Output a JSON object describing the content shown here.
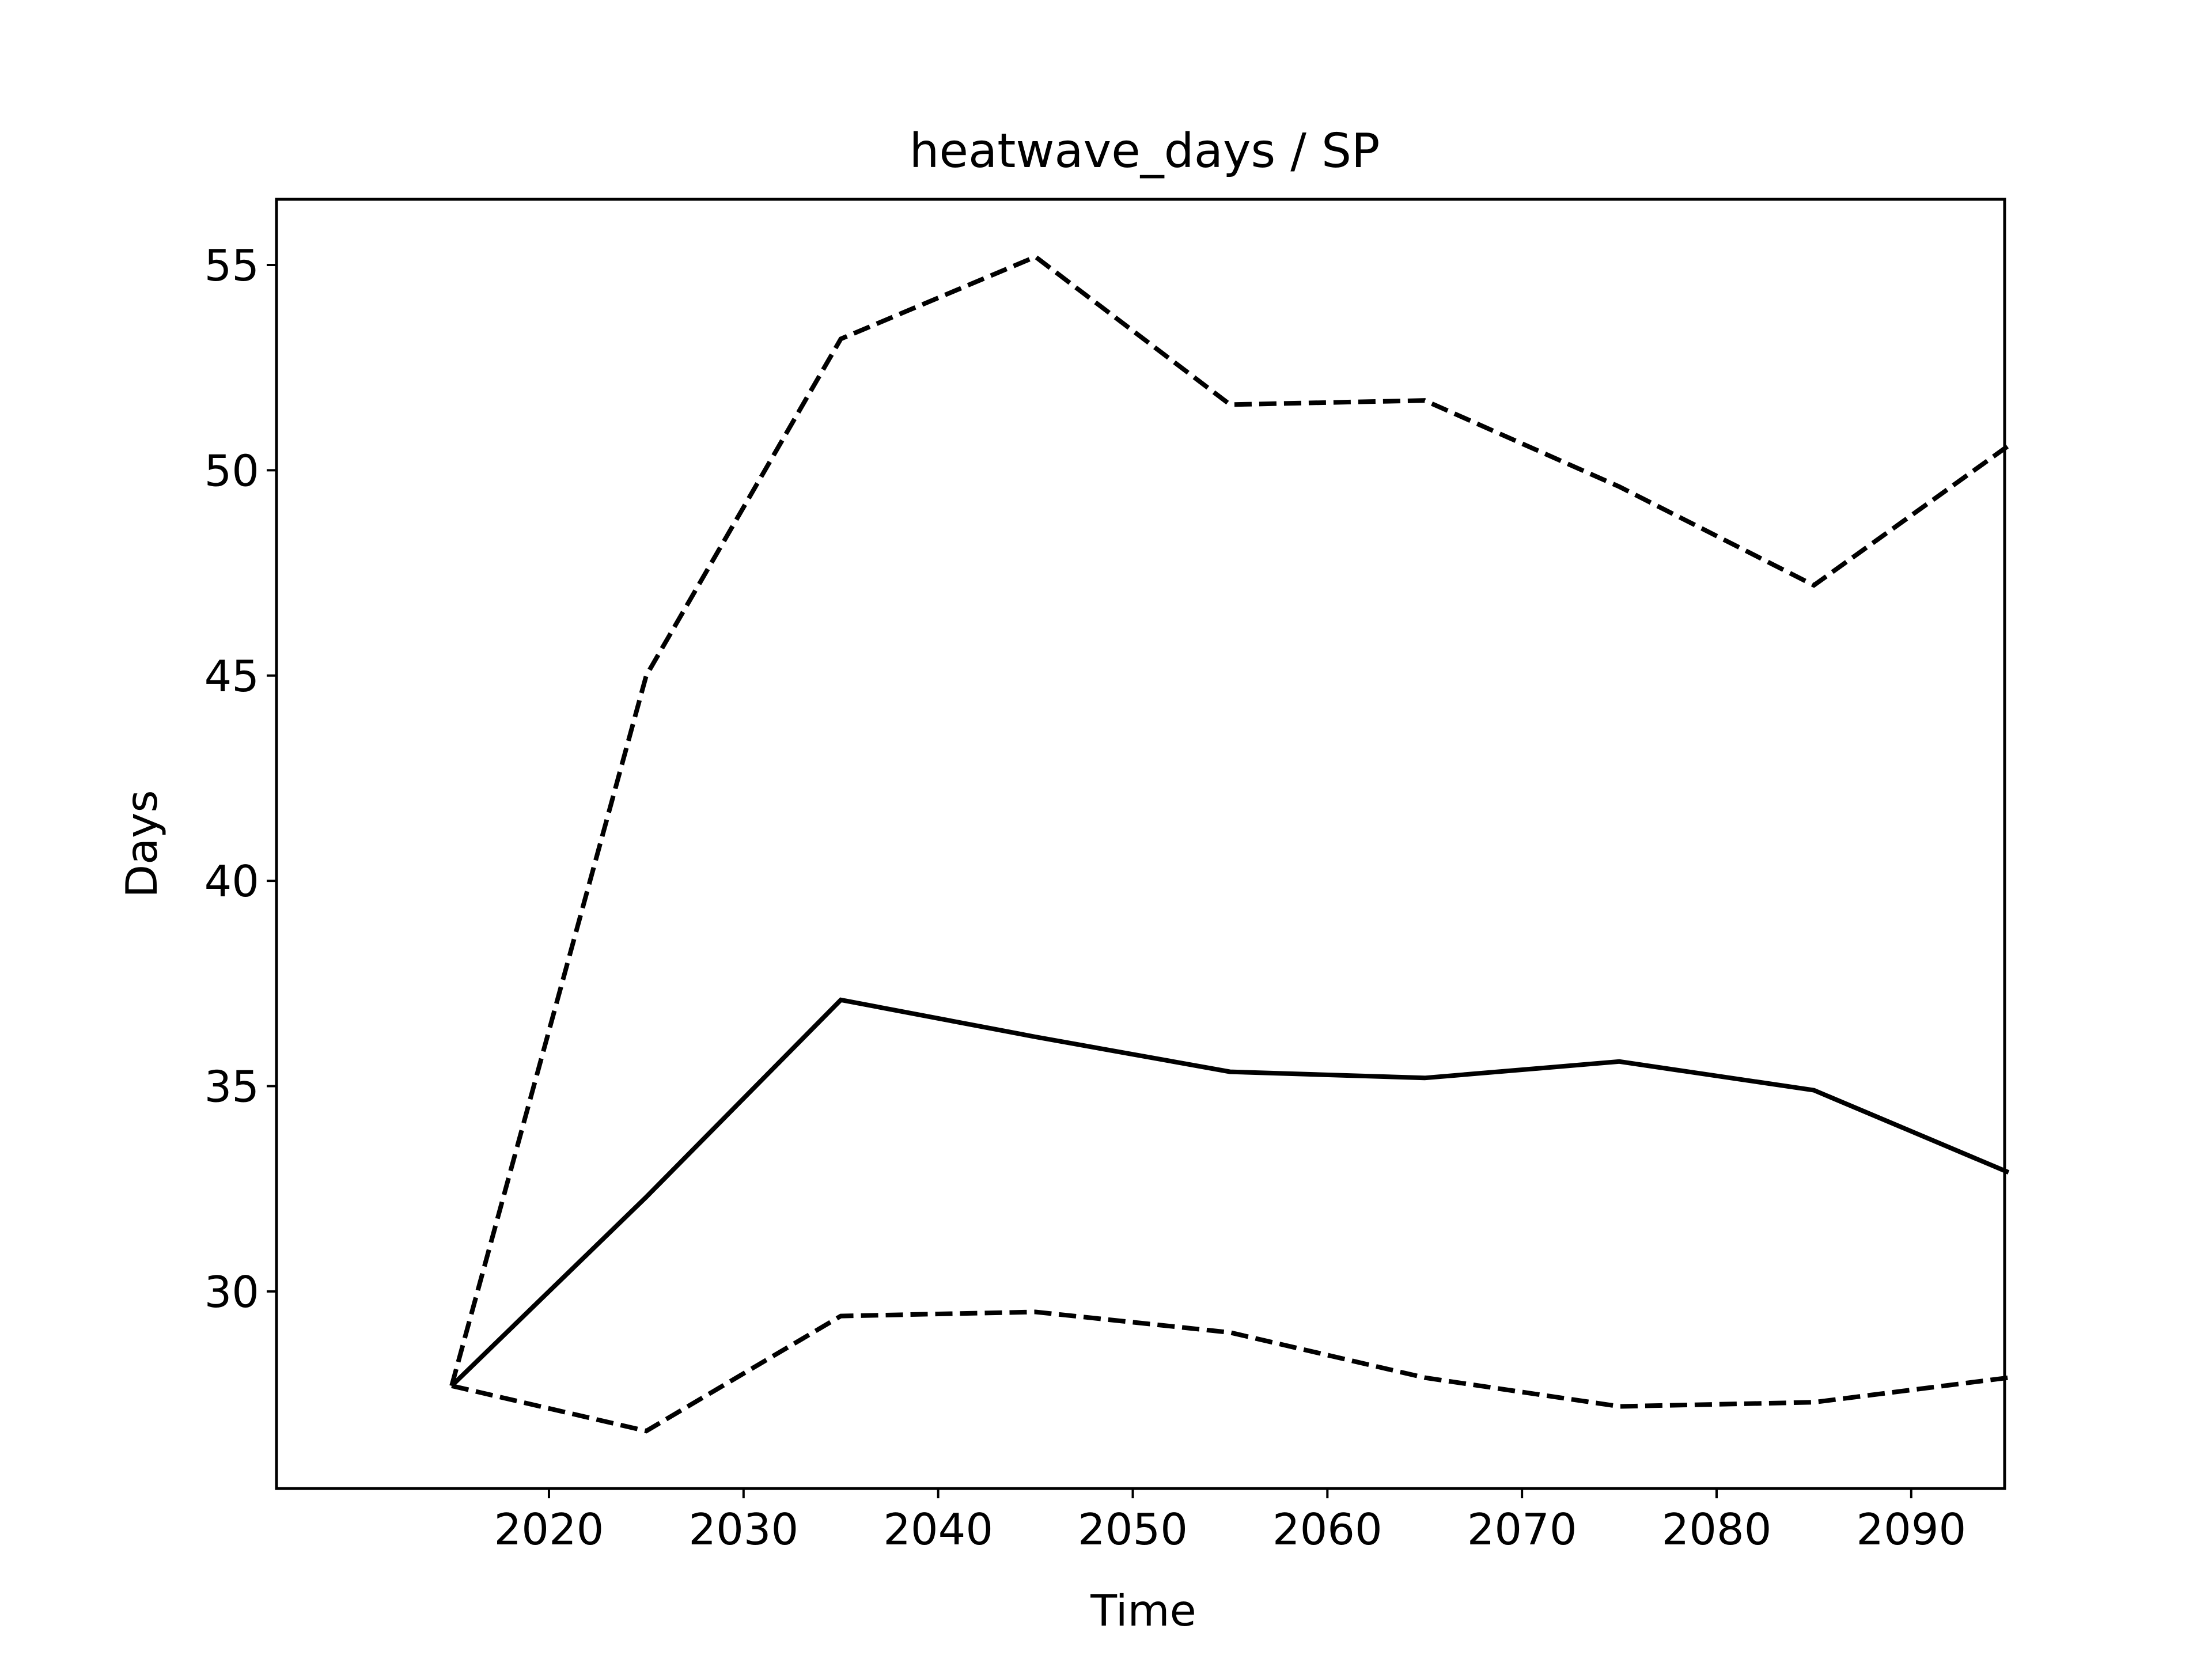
{
  "chart_data": {
    "type": "line",
    "title": "heatwave_days / SP",
    "xlabel": "Time",
    "ylabel": "Days",
    "x": [
      2015,
      2025,
      2035,
      2045,
      2055,
      2065,
      2075,
      2085,
      2095
    ],
    "xlim": [
      2006,
      2094.8
    ],
    "ylim": [
      25.2,
      56.6
    ],
    "xticks": [
      2020,
      2030,
      2040,
      2050,
      2060,
      2070,
      2080,
      2090
    ],
    "xtick_labels": [
      "2020",
      "2030",
      "2040",
      "2050",
      "2060",
      "2070",
      "2080",
      "2090"
    ],
    "yticks": [
      30,
      35,
      40,
      45,
      50,
      55
    ],
    "ytick_labels": [
      "30",
      "35",
      "40",
      "45",
      "50",
      "55"
    ],
    "grid": false,
    "legend": "none",
    "series": [
      {
        "style": "solid",
        "color": "#000000",
        "values": [
          27.7,
          32.3,
          37.1,
          36.2,
          35.35,
          35.2,
          35.6,
          34.9,
          32.9
        ]
      },
      {
        "style": "dashed",
        "color": "#000000",
        "values": [
          27.7,
          45.0,
          53.2,
          55.2,
          51.6,
          51.7,
          49.6,
          47.2,
          50.6
        ]
      },
      {
        "style": "dashed",
        "color": "#000000",
        "values": [
          27.7,
          26.6,
          29.4,
          29.5,
          29.0,
          27.9,
          27.2,
          27.3,
          27.9
        ]
      }
    ]
  }
}
